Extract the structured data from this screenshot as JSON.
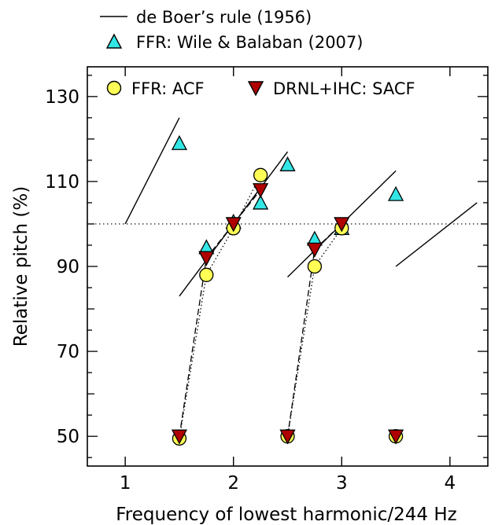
{
  "chart_data": {
    "type": "scatter",
    "xlabel": "Frequency of lowest harmonic/244 Hz",
    "ylabel": "Relative pitch (%)",
    "xlim": [
      0.65,
      4.35
    ],
    "ylim": [
      43,
      137
    ],
    "xticks": [
      1,
      2,
      3,
      4
    ],
    "xtick_labels": [
      "1",
      "2",
      "3",
      "4"
    ],
    "yticks": [
      50,
      70,
      90,
      110,
      130
    ],
    "ytick_labels": [
      "50",
      "70",
      "90",
      "110",
      "130"
    ],
    "reference_line_y": 100,
    "legend": [
      {
        "label": "de Boer’s rule (1956)",
        "marker": "line"
      },
      {
        "label": "FFR: Wile & Balaban (2007)",
        "marker": "triangle-up",
        "color": "#33e6e6"
      },
      {
        "label": "FFR: ACF",
        "marker": "circle",
        "color": "#ffff55"
      },
      {
        "label": "DRNL+IHC: SACF",
        "marker": "triangle-down",
        "color": "#b00000"
      }
    ],
    "de_boer_segments": [
      [
        [
          1.0,
          100
        ],
        [
          1.5,
          125
        ]
      ],
      [
        [
          1.5,
          83
        ],
        [
          2.5,
          117
        ]
      ],
      [
        [
          2.5,
          87.5
        ],
        [
          3.5,
          112.5
        ]
      ],
      [
        [
          3.5,
          90
        ],
        [
          4.25,
          105
        ]
      ]
    ],
    "ffr_wile_balaban": {
      "x": [
        1.5,
        1.75,
        2.0,
        2.25,
        2.5,
        2.75,
        3.0,
        3.5
      ],
      "y": [
        119,
        94.5,
        100.5,
        105,
        114,
        96.5,
        99,
        107
      ]
    },
    "ffr_acf": {
      "groups": [
        {
          "x": [
            1.5,
            1.75,
            2.0,
            2.25
          ],
          "y": [
            49.5,
            88,
            99,
            111.5
          ]
        },
        {
          "x": [
            2.5,
            2.75,
            3.0
          ],
          "y": [
            50,
            90,
            99
          ]
        },
        {
          "x": [
            3.5
          ],
          "y": [
            50
          ]
        }
      ]
    },
    "drnl_ihc_sacf": {
      "groups": [
        {
          "x": [
            1.5,
            1.75,
            2.0,
            2.25
          ],
          "y": [
            50,
            92,
            100,
            108
          ]
        },
        {
          "x": [
            2.5,
            2.75,
            3.0
          ],
          "y": [
            50,
            94,
            100
          ]
        },
        {
          "x": [
            3.5
          ],
          "y": [
            50
          ]
        }
      ]
    }
  }
}
